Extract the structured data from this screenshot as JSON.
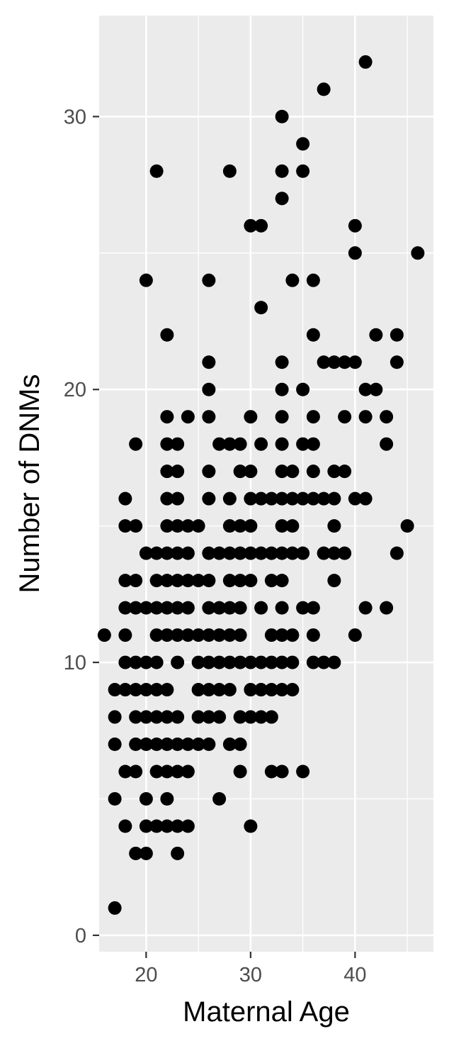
{
  "chart_data": {
    "type": "scatter",
    "title": "",
    "xlabel": "Maternal Age",
    "ylabel": "Number of DNMs",
    "xlim": [
      15.5,
      47.5
    ],
    "ylim": [
      -0.6,
      33.7
    ],
    "x_ticks": [
      20,
      30,
      40
    ],
    "x_tick_labels": [
      "20",
      "30",
      "40"
    ],
    "y_ticks": [
      0,
      10,
      20,
      30
    ],
    "y_tick_labels": [
      "0",
      "10",
      "20",
      "30"
    ],
    "grid": true,
    "legend": "none",
    "point_color": "#000000",
    "panel_color": "#ebebeb",
    "points": [
      [
        16,
        11
      ],
      [
        17,
        1
      ],
      [
        17,
        5
      ],
      [
        17,
        7
      ],
      [
        17,
        8
      ],
      [
        17,
        9
      ],
      [
        18,
        4
      ],
      [
        18,
        6
      ],
      [
        18,
        9
      ],
      [
        18,
        10
      ],
      [
        18,
        11
      ],
      [
        18,
        12
      ],
      [
        18,
        13
      ],
      [
        18,
        15
      ],
      [
        18,
        16
      ],
      [
        19,
        3
      ],
      [
        19,
        6
      ],
      [
        19,
        7
      ],
      [
        19,
        8
      ],
      [
        19,
        9
      ],
      [
        19,
        10
      ],
      [
        19,
        12
      ],
      [
        19,
        13
      ],
      [
        19,
        15
      ],
      [
        19,
        18
      ],
      [
        20,
        3
      ],
      [
        20,
        4
      ],
      [
        20,
        5
      ],
      [
        20,
        7
      ],
      [
        20,
        8
      ],
      [
        20,
        9
      ],
      [
        20,
        10
      ],
      [
        20,
        12
      ],
      [
        20,
        14
      ],
      [
        20,
        24
      ],
      [
        21,
        4
      ],
      [
        21,
        6
      ],
      [
        21,
        7
      ],
      [
        21,
        8
      ],
      [
        21,
        9
      ],
      [
        21,
        10
      ],
      [
        21,
        11
      ],
      [
        21,
        12
      ],
      [
        21,
        13
      ],
      [
        21,
        14
      ],
      [
        21,
        28
      ],
      [
        22,
        4
      ],
      [
        22,
        5
      ],
      [
        22,
        6
      ],
      [
        22,
        7
      ],
      [
        22,
        8
      ],
      [
        22,
        9
      ],
      [
        22,
        11
      ],
      [
        22,
        12
      ],
      [
        22,
        13
      ],
      [
        22,
        14
      ],
      [
        22,
        15
      ],
      [
        22,
        16
      ],
      [
        22,
        17
      ],
      [
        22,
        18
      ],
      [
        22,
        19
      ],
      [
        22,
        22
      ],
      [
        23,
        3
      ],
      [
        23,
        4
      ],
      [
        23,
        6
      ],
      [
        23,
        7
      ],
      [
        23,
        8
      ],
      [
        23,
        10
      ],
      [
        23,
        11
      ],
      [
        23,
        12
      ],
      [
        23,
        13
      ],
      [
        23,
        14
      ],
      [
        23,
        15
      ],
      [
        23,
        16
      ],
      [
        23,
        17
      ],
      [
        23,
        18
      ],
      [
        24,
        4
      ],
      [
        24,
        6
      ],
      [
        24,
        7
      ],
      [
        24,
        11
      ],
      [
        24,
        12
      ],
      [
        24,
        13
      ],
      [
        24,
        14
      ],
      [
        24,
        15
      ],
      [
        24,
        19
      ],
      [
        25,
        7
      ],
      [
        25,
        8
      ],
      [
        25,
        9
      ],
      [
        25,
        10
      ],
      [
        25,
        11
      ],
      [
        25,
        13
      ],
      [
        25,
        15
      ],
      [
        26,
        7
      ],
      [
        26,
        8
      ],
      [
        26,
        9
      ],
      [
        26,
        10
      ],
      [
        26,
        11
      ],
      [
        26,
        12
      ],
      [
        26,
        13
      ],
      [
        26,
        14
      ],
      [
        26,
        16
      ],
      [
        26,
        17
      ],
      [
        26,
        19
      ],
      [
        26,
        20
      ],
      [
        26,
        21
      ],
      [
        26,
        24
      ],
      [
        27,
        5
      ],
      [
        27,
        8
      ],
      [
        27,
        9
      ],
      [
        27,
        10
      ],
      [
        27,
        11
      ],
      [
        27,
        12
      ],
      [
        27,
        14
      ],
      [
        27,
        18
      ],
      [
        28,
        7
      ],
      [
        28,
        9
      ],
      [
        28,
        10
      ],
      [
        28,
        11
      ],
      [
        28,
        12
      ],
      [
        28,
        13
      ],
      [
        28,
        14
      ],
      [
        28,
        15
      ],
      [
        28,
        16
      ],
      [
        28,
        18
      ],
      [
        28,
        28
      ],
      [
        29,
        6
      ],
      [
        29,
        7
      ],
      [
        29,
        8
      ],
      [
        29,
        10
      ],
      [
        29,
        11
      ],
      [
        29,
        12
      ],
      [
        29,
        13
      ],
      [
        29,
        14
      ],
      [
        29,
        15
      ],
      [
        29,
        17
      ],
      [
        29,
        18
      ],
      [
        30,
        4
      ],
      [
        30,
        8
      ],
      [
        30,
        9
      ],
      [
        30,
        10
      ],
      [
        30,
        13
      ],
      [
        30,
        14
      ],
      [
        30,
        15
      ],
      [
        30,
        16
      ],
      [
        30,
        17
      ],
      [
        30,
        19
      ],
      [
        30,
        26
      ],
      [
        31,
        8
      ],
      [
        31,
        9
      ],
      [
        31,
        10
      ],
      [
        31,
        12
      ],
      [
        31,
        14
      ],
      [
        31,
        16
      ],
      [
        31,
        18
      ],
      [
        31,
        23
      ],
      [
        31,
        26
      ],
      [
        32,
        6
      ],
      [
        32,
        8
      ],
      [
        32,
        9
      ],
      [
        32,
        10
      ],
      [
        32,
        11
      ],
      [
        32,
        13
      ],
      [
        32,
        14
      ],
      [
        32,
        16
      ],
      [
        33,
        6
      ],
      [
        33,
        9
      ],
      [
        33,
        10
      ],
      [
        33,
        11
      ],
      [
        33,
        12
      ],
      [
        33,
        13
      ],
      [
        33,
        14
      ],
      [
        33,
        15
      ],
      [
        33,
        16
      ],
      [
        33,
        17
      ],
      [
        33,
        18
      ],
      [
        33,
        19
      ],
      [
        33,
        20
      ],
      [
        33,
        21
      ],
      [
        33,
        27
      ],
      [
        33,
        28
      ],
      [
        33,
        30
      ],
      [
        34,
        9
      ],
      [
        34,
        10
      ],
      [
        34,
        11
      ],
      [
        34,
        14
      ],
      [
        34,
        15
      ],
      [
        34,
        16
      ],
      [
        34,
        17
      ],
      [
        34,
        24
      ],
      [
        35,
        6
      ],
      [
        35,
        12
      ],
      [
        35,
        14
      ],
      [
        35,
        16
      ],
      [
        35,
        18
      ],
      [
        35,
        20
      ],
      [
        35,
        28
      ],
      [
        35,
        29
      ],
      [
        36,
        10
      ],
      [
        36,
        11
      ],
      [
        36,
        12
      ],
      [
        36,
        16
      ],
      [
        36,
        17
      ],
      [
        36,
        18
      ],
      [
        36,
        19
      ],
      [
        36,
        22
      ],
      [
        36,
        24
      ],
      [
        37,
        10
      ],
      [
        37,
        14
      ],
      [
        37,
        16
      ],
      [
        37,
        21
      ],
      [
        37,
        31
      ],
      [
        38,
        10
      ],
      [
        38,
        13
      ],
      [
        38,
        14
      ],
      [
        38,
        15
      ],
      [
        38,
        16
      ],
      [
        38,
        17
      ],
      [
        38,
        21
      ],
      [
        39,
        14
      ],
      [
        39,
        17
      ],
      [
        39,
        19
      ],
      [
        39,
        21
      ],
      [
        40,
        11
      ],
      [
        40,
        16
      ],
      [
        40,
        21
      ],
      [
        40,
        25
      ],
      [
        40,
        26
      ],
      [
        41,
        12
      ],
      [
        41,
        16
      ],
      [
        41,
        19
      ],
      [
        41,
        20
      ],
      [
        41,
        32
      ],
      [
        42,
        20
      ],
      [
        42,
        22
      ],
      [
        43,
        12
      ],
      [
        43,
        18
      ],
      [
        43,
        19
      ],
      [
        44,
        14
      ],
      [
        44,
        21
      ],
      [
        44,
        22
      ],
      [
        45,
        15
      ],
      [
        46,
        25
      ]
    ]
  }
}
